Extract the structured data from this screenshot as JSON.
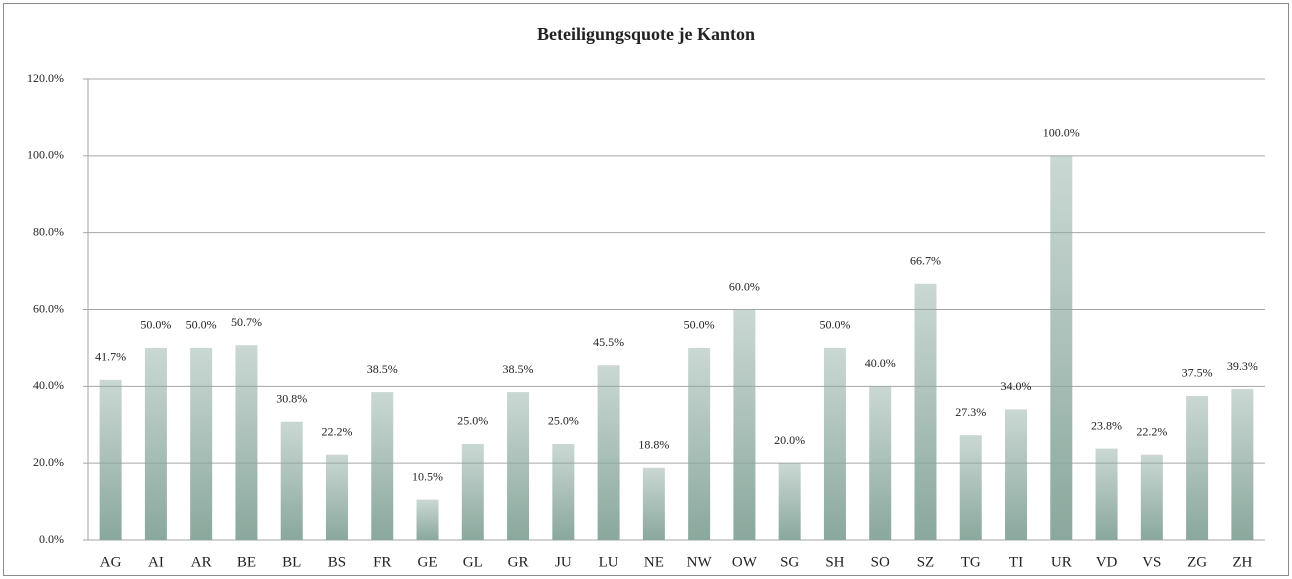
{
  "chart_data": {
    "type": "bar",
    "title": "Beteiligungsquote je Kanton",
    "categories": [
      "AG",
      "AI",
      "AR",
      "BE",
      "BL",
      "BS",
      "FR",
      "GE",
      "GL",
      "GR",
      "JU",
      "LU",
      "NE",
      "NW",
      "OW",
      "SG",
      "SH",
      "SO",
      "SZ",
      "TG",
      "TI",
      "UR",
      "VD",
      "VS",
      "ZG",
      "ZH"
    ],
    "values": [
      41.7,
      50,
      50,
      50.7,
      30.8,
      22.2,
      38.5,
      10.5,
      25,
      38.5,
      25,
      45.5,
      18.8,
      50,
      60,
      20,
      50,
      40,
      66.7,
      27.3,
      34,
      100,
      23.8,
      22.2,
      37.5,
      39.3
    ],
    "value_labels": [
      "41.7%",
      "50.0%",
      "50.0%",
      "50.7%",
      "30.8%",
      "22.2%",
      "38.5%",
      "10.5%",
      "25.0%",
      "38.5%",
      "25.0%",
      "45.5%",
      "18.8%",
      "50.0%",
      "60.0%",
      "20.0%",
      "50.0%",
      "40.0%",
      "66.7%",
      "27.3%",
      "34.0%",
      "100.0%",
      "23.8%",
      "22.2%",
      "37.5%",
      "39.3%"
    ],
    "color": "#8aa89d",
    "ylim": [
      0,
      120
    ],
    "yticks": [
      {
        "value": 0,
        "label": "0.0%"
      },
      {
        "value": 20,
        "label": "20.0%"
      },
      {
        "value": 40,
        "label": "40.0%"
      },
      {
        "value": 60,
        "label": "60.0%"
      },
      {
        "value": 80,
        "label": "80.0%"
      },
      {
        "value": 100,
        "label": "100.0%"
      },
      {
        "value": 120,
        "label": "120.0%"
      }
    ],
    "grid": true
  }
}
